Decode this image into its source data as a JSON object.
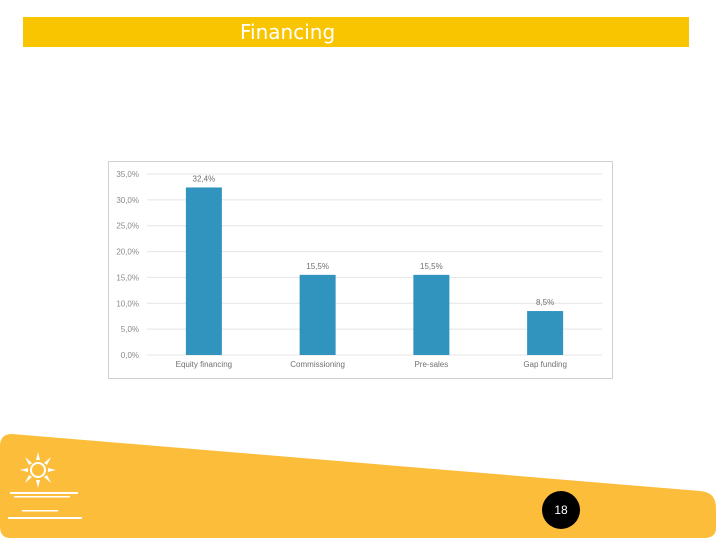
{
  "slide": {
    "title": "Financing",
    "page_number": "18"
  },
  "colors": {
    "accent": "#f9c400",
    "footer": "#fbbd3a",
    "bar": "#3194be",
    "badge": "#000000"
  },
  "chart_data": {
    "type": "bar",
    "categories": [
      "Equity financing",
      "Commissioning",
      "Pre-sales",
      "Gap funding"
    ],
    "values": [
      32.4,
      15.5,
      15.5,
      8.5
    ],
    "value_labels": [
      "32,4%",
      "15,5%",
      "15,5%",
      "8,5%"
    ],
    "title": "",
    "xlabel": "",
    "ylabel": "",
    "ylim": [
      0,
      35
    ],
    "ticks": [
      0,
      5,
      10,
      15,
      20,
      25,
      30,
      35
    ],
    "tick_labels": [
      "0,0%",
      "5,0%",
      "10,0%",
      "15,0%",
      "20,0%",
      "25,0%",
      "30,0%",
      "35,0%"
    ],
    "grid": true,
    "legend": "none"
  }
}
